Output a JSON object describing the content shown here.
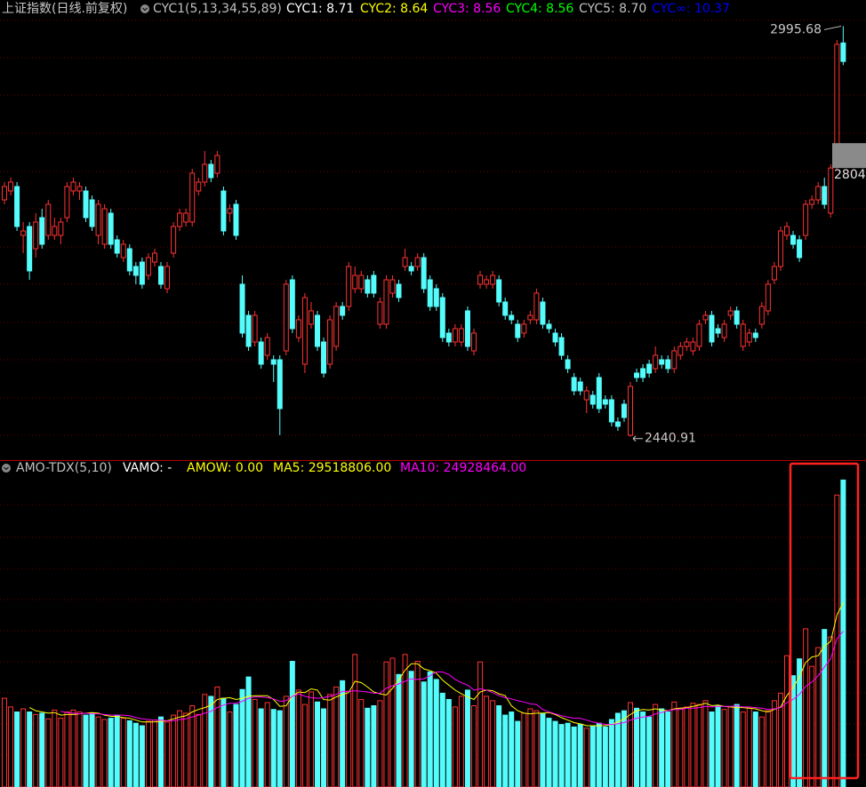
{
  "chart_data": [
    {
      "type": "candlestick",
      "title": "上证指数(日线.前复权)",
      "indicator": "CYC1(5,13,34,55,89)",
      "legend": [
        {
          "text": "CYC1: 8.71",
          "color": "#ffffff"
        },
        {
          "text": "CYC2: 8.64",
          "color": "#ffff00"
        },
        {
          "text": "CYC3: 8.56",
          "color": "#ff00ff"
        },
        {
          "text": "CYC4: 8.56",
          "color": "#00ff00"
        },
        {
          "text": "CYC5: 8.70",
          "color": "#c0c0c0"
        },
        {
          "text": "CYC∞: 10.37",
          "color": "#0000ff"
        }
      ],
      "up_color": "#ff3232",
      "down_color": "#54fcfc",
      "ylim": [
        2409.4,
        3031
      ],
      "high_label": 2995.68,
      "low_label": 2440.91,
      "last_price": 2804,
      "ohlc": [
        [
          2761,
          2785,
          2755,
          2779
        ],
        [
          2773,
          2791,
          2767,
          2785
        ],
        [
          2779,
          2785,
          2719,
          2725
        ],
        [
          2713,
          2731,
          2689,
          2719
        ],
        [
          2725,
          2731,
          2653,
          2665
        ],
        [
          2695,
          2743,
          2683,
          2731
        ],
        [
          2737,
          2749,
          2695,
          2701
        ],
        [
          2713,
          2761,
          2707,
          2755
        ],
        [
          2713,
          2737,
          2707,
          2725
        ],
        [
          2713,
          2737,
          2701,
          2731
        ],
        [
          2737,
          2785,
          2731,
          2779
        ],
        [
          2773,
          2791,
          2767,
          2785
        ],
        [
          2773,
          2785,
          2761,
          2779
        ],
        [
          2773,
          2779,
          2731,
          2737
        ],
        [
          2761,
          2767,
          2719,
          2725
        ],
        [
          2713,
          2761,
          2701,
          2755
        ],
        [
          2701,
          2755,
          2695,
          2749
        ],
        [
          2743,
          2749,
          2695,
          2701
        ],
        [
          2707,
          2713,
          2683,
          2689
        ],
        [
          2683,
          2707,
          2677,
          2701
        ],
        [
          2695,
          2701,
          2659,
          2665
        ],
        [
          2671,
          2677,
          2647,
          2659
        ],
        [
          2677,
          2683,
          2641,
          2647
        ],
        [
          2659,
          2689,
          2653,
          2683
        ],
        [
          2677,
          2695,
          2671,
          2689
        ],
        [
          2671,
          2677,
          2641,
          2647
        ],
        [
          2641,
          2677,
          2635,
          2671
        ],
        [
          2689,
          2731,
          2683,
          2725
        ],
        [
          2725,
          2749,
          2719,
          2743
        ],
        [
          2731,
          2749,
          2725,
          2743
        ],
        [
          2731,
          2803,
          2725,
          2797
        ],
        [
          2773,
          2791,
          2767,
          2785
        ],
        [
          2785,
          2827,
          2779,
          2809
        ],
        [
          2809,
          2815,
          2785,
          2791
        ],
        [
          2797,
          2827,
          2791,
          2821
        ],
        [
          2773,
          2779,
          2713,
          2719
        ],
        [
          2743,
          2755,
          2731,
          2749
        ],
        [
          2755,
          2761,
          2707,
          2713
        ],
        [
          2647,
          2659,
          2575,
          2581
        ],
        [
          2605,
          2611,
          2557,
          2563
        ],
        [
          2569,
          2611,
          2563,
          2605
        ],
        [
          2569,
          2575,
          2533,
          2539
        ],
        [
          2551,
          2581,
          2545,
          2575
        ],
        [
          2545,
          2551,
          2515,
          2539
        ],
        [
          2545,
          2551,
          2443,
          2479
        ],
        [
          2557,
          2653,
          2551,
          2647
        ],
        [
          2653,
          2659,
          2581,
          2587
        ],
        [
          2575,
          2605,
          2569,
          2599
        ],
        [
          2539,
          2635,
          2527,
          2629
        ],
        [
          2593,
          2623,
          2587,
          2611
        ],
        [
          2605,
          2611,
          2557,
          2563
        ],
        [
          2569,
          2575,
          2521,
          2527
        ],
        [
          2539,
          2605,
          2533,
          2599
        ],
        [
          2563,
          2623,
          2557,
          2617
        ],
        [
          2617,
          2623,
          2599,
          2605
        ],
        [
          2617,
          2677,
          2611,
          2671
        ],
        [
          2641,
          2671,
          2635,
          2659
        ],
        [
          2641,
          2665,
          2635,
          2659
        ],
        [
          2653,
          2659,
          2629,
          2635
        ],
        [
          2659,
          2665,
          2629,
          2635
        ],
        [
          2593,
          2629,
          2587,
          2623
        ],
        [
          2593,
          2659,
          2587,
          2653
        ],
        [
          2635,
          2659,
          2629,
          2653
        ],
        [
          2647,
          2653,
          2623,
          2629
        ],
        [
          2671,
          2695,
          2665,
          2683
        ],
        [
          2671,
          2677,
          2659,
          2665
        ],
        [
          2671,
          2689,
          2665,
          2683
        ],
        [
          2683,
          2689,
          2635,
          2641
        ],
        [
          2653,
          2659,
          2611,
          2617
        ],
        [
          2641,
          2647,
          2611,
          2617
        ],
        [
          2629,
          2635,
          2569,
          2575
        ],
        [
          2581,
          2587,
          2563,
          2569
        ],
        [
          2569,
          2593,
          2563,
          2587
        ],
        [
          2569,
          2593,
          2563,
          2587
        ],
        [
          2611,
          2617,
          2557,
          2563
        ],
        [
          2557,
          2587,
          2551,
          2581
        ],
        [
          2647,
          2665,
          2641,
          2659
        ],
        [
          2647,
          2659,
          2641,
          2653
        ],
        [
          2647,
          2665,
          2641,
          2659
        ],
        [
          2653,
          2659,
          2617,
          2623
        ],
        [
          2623,
          2629,
          2599,
          2605
        ],
        [
          2605,
          2611,
          2593,
          2599
        ],
        [
          2593,
          2599,
          2569,
          2575
        ],
        [
          2581,
          2599,
          2575,
          2593
        ],
        [
          2599,
          2611,
          2593,
          2605
        ],
        [
          2599,
          2641,
          2593,
          2635
        ],
        [
          2623,
          2629,
          2587,
          2593
        ],
        [
          2593,
          2599,
          2581,
          2587
        ],
        [
          2581,
          2587,
          2563,
          2569
        ],
        [
          2575,
          2581,
          2545,
          2551
        ],
        [
          2545,
          2551,
          2527,
          2533
        ],
        [
          2521,
          2527,
          2497,
          2503
        ],
        [
          2515,
          2521,
          2497,
          2503
        ],
        [
          2491,
          2509,
          2473,
          2503
        ],
        [
          2497,
          2503,
          2479,
          2485
        ],
        [
          2521,
          2527,
          2473,
          2479
        ],
        [
          2491,
          2497,
          2479,
          2485
        ],
        [
          2491,
          2497,
          2455,
          2461
        ],
        [
          2461,
          2467,
          2449,
          2455
        ],
        [
          2485,
          2491,
          2461,
          2467
        ],
        [
          2443,
          2515,
          2441,
          2509
        ],
        [
          2527,
          2533,
          2515,
          2521
        ],
        [
          2533,
          2539,
          2515,
          2521
        ],
        [
          2539,
          2545,
          2521,
          2527
        ],
        [
          2533,
          2563,
          2527,
          2551
        ],
        [
          2545,
          2551,
          2533,
          2539
        ],
        [
          2545,
          2551,
          2527,
          2533
        ],
        [
          2533,
          2563,
          2527,
          2557
        ],
        [
          2551,
          2569,
          2545,
          2563
        ],
        [
          2563,
          2575,
          2557,
          2569
        ],
        [
          2557,
          2575,
          2551,
          2569
        ],
        [
          2563,
          2599,
          2557,
          2593
        ],
        [
          2599,
          2611,
          2593,
          2605
        ],
        [
          2605,
          2611,
          2563,
          2569
        ],
        [
          2587,
          2593,
          2575,
          2581
        ],
        [
          2575,
          2599,
          2569,
          2593
        ],
        [
          2605,
          2617,
          2599,
          2611
        ],
        [
          2611,
          2617,
          2587,
          2593
        ],
        [
          2563,
          2599,
          2557,
          2593
        ],
        [
          2569,
          2587,
          2563,
          2581
        ],
        [
          2581,
          2587,
          2569,
          2575
        ],
        [
          2593,
          2623,
          2587,
          2617
        ],
        [
          2611,
          2653,
          2605,
          2647
        ],
        [
          2653,
          2677,
          2647,
          2671
        ],
        [
          2671,
          2725,
          2665,
          2719
        ],
        [
          2713,
          2731,
          2707,
          2725
        ],
        [
          2713,
          2719,
          2695,
          2701
        ],
        [
          2707,
          2713,
          2677,
          2683
        ],
        [
          2713,
          2761,
          2707,
          2755
        ],
        [
          2755,
          2767,
          2749,
          2761
        ],
        [
          2761,
          2785,
          2755,
          2779
        ],
        [
          2779,
          2791,
          2749,
          2755
        ],
        [
          2743,
          2809,
          2737,
          2804
        ],
        [
          2809,
          2977,
          2803,
          2971
        ],
        [
          2973,
          2995.68,
          2943,
          2948
        ]
      ]
    },
    {
      "type": "bar",
      "title": "AMO-TDX(5,10)",
      "legend": [
        {
          "text": "VAMO: -",
          "color": "#ffffff"
        },
        {
          "text": "AMOW: 0.00",
          "color": "#ffff00"
        },
        {
          "text": "MA5: 29518806.00",
          "color": "#ffff00"
        },
        {
          "text": "MA10: 24928464.00",
          "color": "#ff00ff"
        }
      ],
      "ylim": [
        0,
        52
      ],
      "values": [
        14.2,
        12.8,
        12.0,
        12.5,
        12.0,
        11.6,
        11.8,
        10.9,
        12.3,
        11.0,
        12.0,
        12.3,
        12.0,
        11.5,
        11.8,
        11.2,
        10.8,
        11.0,
        11.5,
        11.0,
        10.6,
        10.2,
        9.8,
        10.5,
        10.7,
        11.2,
        10.4,
        11.5,
        12.2,
        11.8,
        13.0,
        11.6,
        14.8,
        14.5,
        16.0,
        14.2,
        12.0,
        13.2,
        15.6,
        17.6,
        14.0,
        12.5,
        13.5,
        12.4,
        12.2,
        14.5,
        20.1,
        15.5,
        13.2,
        15.2,
        13.6,
        12.5,
        14.8,
        16.0,
        17.0,
        15.3,
        21.2,
        14.0,
        12.6,
        13.0,
        13.8,
        20.0,
        20.6,
        18.0,
        21.2,
        18.5,
        20.1,
        16.8,
        18.4,
        17.2,
        15.0,
        14.0,
        12.8,
        14.5,
        15.5,
        13.0,
        20.0,
        14.5,
        13.8,
        13.0,
        11.5,
        12.0,
        10.5,
        11.8,
        12.5,
        12.2,
        11.8,
        11.0,
        10.5,
        10.0,
        10.2,
        9.6,
        10.0,
        9.4,
        9.8,
        10.2,
        9.6,
        10.8,
        11.8,
        12.2,
        13.5,
        12.6,
        12.0,
        11.2,
        13.2,
        12.5,
        12.0,
        13.6,
        12.6,
        12.8,
        13.4,
        13.2,
        13.8,
        12.0,
        13.0,
        12.4,
        12.8,
        13.2,
        12.0,
        12.6,
        12.0,
        11.2,
        12.2,
        13.8,
        15.0,
        21.0,
        17.8,
        20.5,
        25.3,
        19.3,
        22.3,
        25.2,
        24.0,
        46.7,
        49.1
      ],
      "lines": [
        {
          "color": "#ffff00",
          "values": [
            null,
            null,
            null,
            null,
            12.7,
            12.2,
            12.0,
            11.8,
            11.9,
            11.5,
            11.6,
            11.6,
            11.7,
            11.8,
            11.9,
            11.8,
            11.5,
            11.3,
            11.3,
            11.1,
            11.0,
            10.7,
            10.4,
            10.4,
            10.4,
            10.5,
            10.6,
            10.9,
            11.2,
            11.4,
            12.0,
            12.4,
            12.7,
            13.1,
            14.0,
            14.2,
            14.3,
            14.0,
            14.2,
            14.5,
            14.6,
            14.6,
            14.6,
            14.0,
            12.9,
            13.0,
            14.5,
            15.2,
            15.1,
            15.7,
            15.5,
            14.0,
            13.9,
            14.4,
            14.8,
            15.1,
            16.9,
            16.7,
            16.0,
            15.2,
            14.9,
            14.7,
            15.8,
            17.1,
            18.7,
            19.7,
            19.7,
            18.9,
            18.6,
            18.2,
            17.1,
            16.3,
            15.5,
            14.9,
            14.4,
            14.0,
            15.2,
            15.5,
            15.4,
            14.9,
            14.6,
            13.0,
            12.2,
            11.8,
            11.7,
            11.8,
            11.8,
            11.9,
            11.6,
            11.1,
            10.7,
            10.3,
            10.1,
            9.8,
            9.8,
            9.8,
            9.8,
            10.0,
            10.4,
            10.9,
            11.6,
            12.2,
            12.4,
            12.3,
            12.5,
            12.3,
            12.2,
            12.5,
            12.6,
            12.7,
            12.9,
            13.1,
            13.4,
            13.0,
            13.1,
            12.9,
            12.8,
            12.7,
            12.7,
            12.6,
            12.5,
            12.2,
            12.0,
            12.4,
            12.8,
            14.6,
            15.9,
            17.6,
            19.9,
            20.8,
            21.0,
            22.5,
            23.3,
            27.5,
            29.5
          ]
        },
        {
          "color": "#ff00ff",
          "values": [
            null,
            null,
            null,
            null,
            null,
            null,
            null,
            null,
            null,
            12.1,
            11.9,
            11.8,
            11.7,
            11.8,
            11.7,
            11.7,
            11.6,
            11.5,
            11.5,
            11.5,
            11.4,
            11.1,
            10.9,
            10.8,
            10.7,
            10.7,
            10.6,
            10.6,
            10.8,
            10.9,
            11.2,
            11.5,
            11.8,
            12.1,
            12.7,
            13.1,
            13.4,
            13.4,
            13.7,
            14.2,
            14.4,
            14.4,
            14.3,
            14.1,
            13.7,
            13.8,
            14.5,
            14.9,
            14.5,
            14.3,
            14.2,
            14.3,
            14.5,
            14.8,
            15.3,
            15.3,
            15.4,
            15.3,
            15.2,
            15.0,
            15.0,
            15.8,
            16.2,
            16.5,
            16.9,
            17.3,
            17.2,
            17.3,
            17.8,
            18.4,
            18.4,
            18.0,
            17.2,
            16.7,
            16.3,
            15.5,
            15.7,
            15.5,
            15.1,
            14.6,
            14.3,
            14.1,
            13.8,
            13.6,
            13.3,
            13.2,
            12.4,
            12.0,
            11.7,
            11.4,
            11.2,
            11.0,
            11.0,
            10.7,
            10.4,
            10.2,
            10.0,
            10.0,
            10.1,
            10.3,
            10.7,
            11.0,
            11.2,
            11.3,
            11.7,
            11.9,
            12.2,
            12.4,
            12.4,
            12.6,
            12.6,
            12.7,
            12.9,
            12.8,
            12.9,
            12.9,
            12.9,
            13.0,
            12.8,
            12.8,
            12.7,
            12.6,
            12.4,
            12.5,
            12.7,
            13.5,
            14.0,
            14.8,
            16.1,
            16.8,
            17.8,
            19.2,
            20.5,
            23.7,
            24.9
          ]
        }
      ]
    }
  ]
}
